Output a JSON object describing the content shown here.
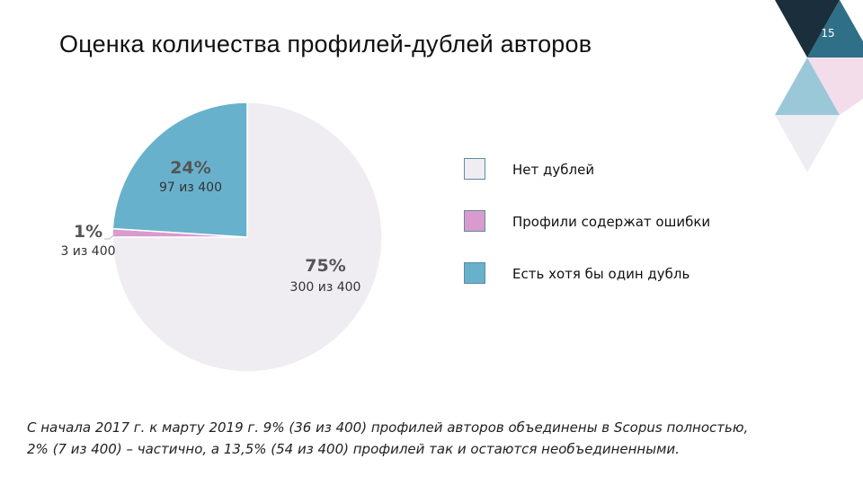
{
  "page": {
    "title": "Оценка количества профилей-дублей авторов",
    "page_number": "15",
    "note_line1": "С начала 2017 г. к марту 2019 г. 9% (36 из 400) профилей авторов объединены в Scopus полностью,",
    "note_line2": "2% (7 из 400) – частично, а 13,5% (54 из 400) профилей так и остаются необъединенными."
  },
  "colors": {
    "none": "#efedf2",
    "errors": "#d99bcd",
    "duplicate": "#68b1cc",
    "deco_dark": "#1b2e3c",
    "deco_teal": "#2f6f87",
    "deco_pink": "#f3ddeb",
    "deco_light_blue": "#9ac8d9",
    "deco_grey": "#eeedf2"
  },
  "chart_data": {
    "type": "pie",
    "title": "",
    "slices": [
      {
        "name": "Нет дублей",
        "value": 75,
        "percent_label": "75%",
        "count_label": "300 из 400",
        "color_key": "none"
      },
      {
        "name": "Профили содержат ошибки",
        "value": 1,
        "percent_label": "1%",
        "count_label": "3 из 400",
        "color_key": "errors"
      },
      {
        "name": "Есть хотя бы один дубль",
        "value": 24,
        "percent_label": "24%",
        "count_label": "97 из 400",
        "color_key": "duplicate"
      }
    ],
    "legend": [
      {
        "label": "Нет дублей",
        "color_key": "none"
      },
      {
        "label": "Профили содержат ошибки",
        "color_key": "errors"
      },
      {
        "label": "Есть хотя бы один дубль",
        "color_key": "duplicate"
      }
    ],
    "legend_position": "right"
  }
}
